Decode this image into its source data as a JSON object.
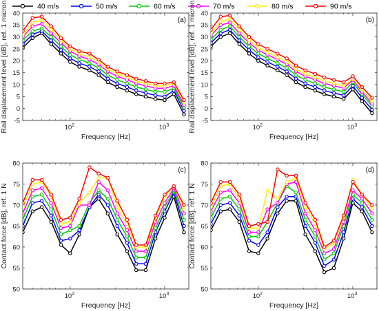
{
  "legend": [
    {
      "label": "40 m/s",
      "color": "#000000"
    },
    {
      "label": "50 m/s",
      "color": "#0000ff"
    },
    {
      "label": "60 m/s",
      "color": "#00cc00"
    },
    {
      "label": "70 m/s",
      "color": "#ff00ff"
    },
    {
      "label": "80 m/s",
      "color": "#ffee00"
    },
    {
      "label": "90 m/s",
      "color": "#ff0000"
    }
  ],
  "chart_data": [
    {
      "type": "line",
      "panel": "(a)",
      "xlabel": "Frequency [Hz]",
      "ylabel": "Rail displacement level [dB], ref. 1 micron",
      "xscale": "log",
      "xlim": [
        31.5,
        1800
      ],
      "ylim": [
        -5,
        40
      ],
      "yticks": [
        -5,
        0,
        5,
        10,
        15,
        20,
        25,
        30,
        35,
        40
      ],
      "xticks": [
        {
          "value": 100,
          "base": "10",
          "exp": "2"
        },
        {
          "value": 1000,
          "base": "10",
          "exp": "3"
        }
      ],
      "grid": false,
      "x": [
        31.5,
        40,
        50,
        63,
        80,
        100,
        125,
        160,
        200,
        250,
        315,
        400,
        500,
        630,
        800,
        1000,
        1250,
        1600
      ],
      "series": [
        {
          "name": "40 m/s",
          "values": [
            25.5,
            29.5,
            31.5,
            27.0,
            23.0,
            19.5,
            17.5,
            16.0,
            14.0,
            11.0,
            9.0,
            7.5,
            6.0,
            5.0,
            4.0,
            3.5,
            6.0,
            -2.5
          ]
        },
        {
          "name": "50 m/s",
          "values": [
            27.0,
            31.0,
            32.5,
            28.5,
            24.5,
            21.0,
            19.0,
            17.5,
            15.5,
            12.5,
            10.5,
            9.0,
            7.5,
            6.5,
            5.5,
            5.0,
            7.5,
            -1.0
          ]
        },
        {
          "name": "60 m/s",
          "values": [
            28.5,
            32.5,
            33.5,
            30.0,
            26.0,
            22.5,
            20.5,
            19.0,
            17.0,
            14.0,
            12.0,
            10.5,
            9.0,
            8.0,
            7.0,
            7.0,
            8.5,
            0.5
          ]
        },
        {
          "name": "70 m/s",
          "values": [
            30.0,
            34.5,
            35.5,
            31.5,
            27.5,
            24.0,
            22.0,
            20.5,
            18.5,
            15.5,
            13.5,
            12.0,
            10.5,
            9.5,
            8.5,
            8.5,
            9.5,
            1.5
          ]
        },
        {
          "name": "80 m/s",
          "values": [
            31.0,
            36.0,
            37.0,
            33.0,
            28.5,
            25.0,
            23.0,
            21.5,
            19.5,
            16.5,
            14.5,
            13.0,
            11.5,
            10.5,
            9.5,
            9.5,
            10.5,
            2.5
          ]
        },
        {
          "name": "90 m/s",
          "values": [
            32.5,
            38.0,
            38.5,
            34.5,
            29.5,
            26.0,
            24.0,
            23.0,
            20.5,
            17.5,
            15.5,
            14.0,
            12.5,
            11.5,
            10.5,
            10.5,
            11.0,
            3.5
          ]
        }
      ]
    },
    {
      "type": "line",
      "panel": "(b)",
      "xlabel": "Frequency [Hz]",
      "ylabel": "Rail displacement level [dB], ref. 1 micron",
      "xscale": "log",
      "xlim": [
        31.5,
        1800
      ],
      "ylim": [
        -5,
        40
      ],
      "yticks": [
        -5,
        0,
        5,
        10,
        15,
        20,
        25,
        30,
        35,
        40
      ],
      "xticks": [
        {
          "value": 100,
          "base": "10",
          "exp": "2"
        },
        {
          "value": 1000,
          "base": "10",
          "exp": "3"
        }
      ],
      "grid": false,
      "x": [
        31.5,
        40,
        50,
        63,
        80,
        100,
        125,
        160,
        200,
        250,
        315,
        400,
        500,
        630,
        800,
        1000,
        1250,
        1600
      ],
      "series": [
        {
          "name": "40 m/s",
          "values": [
            26.0,
            30.0,
            31.5,
            27.0,
            23.0,
            20.0,
            18.0,
            16.0,
            14.0,
            11.0,
            9.0,
            7.5,
            6.0,
            5.0,
            4.0,
            8.0,
            3.0,
            -2.0
          ]
        },
        {
          "name": "50 m/s",
          "values": [
            27.5,
            31.5,
            33.0,
            28.5,
            24.5,
            21.5,
            19.5,
            17.5,
            15.5,
            12.5,
            10.5,
            9.0,
            7.5,
            6.5,
            5.5,
            9.5,
            4.5,
            -0.5
          ]
        },
        {
          "name": "60 m/s",
          "values": [
            29.0,
            33.0,
            34.5,
            30.0,
            26.0,
            23.0,
            21.0,
            19.0,
            17.0,
            14.0,
            12.0,
            10.5,
            9.0,
            8.0,
            7.0,
            11.0,
            6.0,
            1.0
          ]
        },
        {
          "name": "70 m/s",
          "values": [
            30.5,
            35.0,
            36.0,
            31.5,
            27.5,
            24.5,
            22.5,
            20.5,
            18.5,
            15.5,
            13.5,
            12.0,
            10.5,
            9.5,
            8.5,
            12.0,
            7.0,
            2.0
          ]
        },
        {
          "name": "80 m/s",
          "values": [
            31.5,
            36.5,
            37.5,
            33.0,
            28.5,
            25.5,
            23.5,
            21.5,
            19.5,
            16.5,
            14.5,
            13.0,
            11.5,
            10.5,
            9.5,
            12.5,
            8.0,
            3.0
          ]
        },
        {
          "name": "90 m/s",
          "values": [
            33.0,
            38.5,
            39.0,
            34.5,
            30.0,
            27.0,
            25.0,
            23.0,
            21.0,
            18.0,
            16.0,
            14.5,
            13.0,
            12.0,
            11.0,
            13.5,
            9.0,
            4.5
          ]
        }
      ]
    },
    {
      "type": "line",
      "panel": "(c)",
      "xlabel": "Frequency [Hz]",
      "ylabel": "Contact force [dB], ref. 1 N",
      "xscale": "log",
      "xlim": [
        31.5,
        1800
      ],
      "ylim": [
        50,
        80
      ],
      "yticks": [
        50,
        55,
        60,
        65,
        70,
        75,
        80
      ],
      "xticks": [
        {
          "value": 100,
          "base": "10",
          "exp": "2"
        },
        {
          "value": 1000,
          "base": "10",
          "exp": "3"
        }
      ],
      "grid": false,
      "x": [
        31.5,
        40,
        50,
        63,
        80,
        100,
        125,
        160,
        200,
        250,
        315,
        400,
        500,
        630,
        800,
        1000,
        1250,
        1600
      ],
      "series": [
        {
          "name": "40 m/s",
          "values": [
            63.5,
            68.5,
            69.5,
            66.0,
            60.5,
            58.5,
            63.0,
            69.5,
            71.5,
            68.0,
            63.0,
            59.0,
            54.5,
            54.5,
            62.0,
            67.0,
            72.0,
            63.5
          ]
        },
        {
          "name": "50 m/s",
          "values": [
            65.0,
            70.5,
            71.0,
            67.5,
            61.5,
            62.0,
            64.0,
            69.5,
            72.5,
            70.0,
            65.0,
            61.0,
            56.0,
            56.0,
            63.5,
            68.5,
            73.0,
            65.0
          ]
        },
        {
          "name": "60 m/s",
          "values": [
            66.5,
            72.0,
            72.5,
            69.0,
            63.0,
            64.0,
            65.0,
            70.5,
            73.5,
            71.5,
            66.5,
            62.5,
            57.5,
            57.5,
            64.5,
            69.5,
            73.5,
            66.5
          ]
        },
        {
          "name": "70 m/s",
          "values": [
            68.0,
            73.5,
            74.0,
            70.5,
            64.5,
            65.0,
            70.0,
            70.0,
            75.5,
            73.5,
            68.0,
            64.0,
            59.0,
            59.0,
            66.0,
            70.5,
            74.0,
            68.0
          ]
        },
        {
          "name": "80 m/s",
          "values": [
            69.5,
            75.0,
            75.5,
            72.0,
            65.5,
            66.0,
            70.5,
            73.0,
            76.5,
            76.5,
            69.5,
            65.5,
            60.0,
            60.0,
            67.0,
            72.0,
            74.5,
            69.0
          ]
        },
        {
          "name": "90 m/s",
          "values": [
            70.5,
            76.0,
            76.0,
            72.5,
            66.5,
            67.0,
            71.5,
            79.0,
            77.5,
            76.5,
            71.0,
            66.5,
            60.5,
            60.5,
            67.5,
            72.5,
            74.5,
            70.0
          ]
        }
      ]
    },
    {
      "type": "line",
      "panel": "(d)",
      "xlabel": "Frequency [Hz]",
      "ylabel": "Contact force [dB], ref. 1 N",
      "xscale": "log",
      "xlim": [
        31.5,
        1800
      ],
      "ylim": [
        50,
        80
      ],
      "yticks": [
        50,
        55,
        60,
        65,
        70,
        75,
        80
      ],
      "xticks": [
        {
          "value": 100,
          "base": "10",
          "exp": "2"
        },
        {
          "value": 1000,
          "base": "10",
          "exp": "3"
        }
      ],
      "grid": false,
      "x": [
        31.5,
        40,
        50,
        63,
        80,
        100,
        125,
        160,
        200,
        250,
        315,
        400,
        500,
        630,
        800,
        1000,
        1250,
        1600
      ],
      "series": [
        {
          "name": "40 m/s",
          "values": [
            64.0,
            68.5,
            69.0,
            66.0,
            59.0,
            58.5,
            62.0,
            68.0,
            71.0,
            71.0,
            63.0,
            59.0,
            54.0,
            55.0,
            62.0,
            70.5,
            68.5,
            63.5
          ]
        },
        {
          "name": "50 m/s",
          "values": [
            65.5,
            70.0,
            70.5,
            67.5,
            61.5,
            60.5,
            63.5,
            69.5,
            72.0,
            72.0,
            65.0,
            61.0,
            55.5,
            57.0,
            63.5,
            71.5,
            69.5,
            65.0
          ]
        },
        {
          "name": "60 m/s",
          "values": [
            67.0,
            71.5,
            72.0,
            69.0,
            62.5,
            62.5,
            66.0,
            70.5,
            74.5,
            73.0,
            66.5,
            62.5,
            57.0,
            58.5,
            65.0,
            72.5,
            70.5,
            66.5
          ]
        },
        {
          "name": "70 m/s",
          "values": [
            68.5,
            73.0,
            73.5,
            70.5,
            63.5,
            63.5,
            69.0,
            70.5,
            75.0,
            75.5,
            68.0,
            64.0,
            58.5,
            59.5,
            66.0,
            73.5,
            71.5,
            68.0
          ]
        },
        {
          "name": "80 m/s",
          "values": [
            69.5,
            74.5,
            75.0,
            71.5,
            64.5,
            64.5,
            73.5,
            71.5,
            75.5,
            76.5,
            69.5,
            65.5,
            59.5,
            61.0,
            67.0,
            76.0,
            72.5,
            69.0
          ]
        },
        {
          "name": "90 m/s",
          "values": [
            70.5,
            75.5,
            75.5,
            72.5,
            65.0,
            65.5,
            66.0,
            78.5,
            77.0,
            77.0,
            70.5,
            66.5,
            60.0,
            61.5,
            67.5,
            75.5,
            72.5,
            70.0
          ]
        }
      ]
    }
  ]
}
